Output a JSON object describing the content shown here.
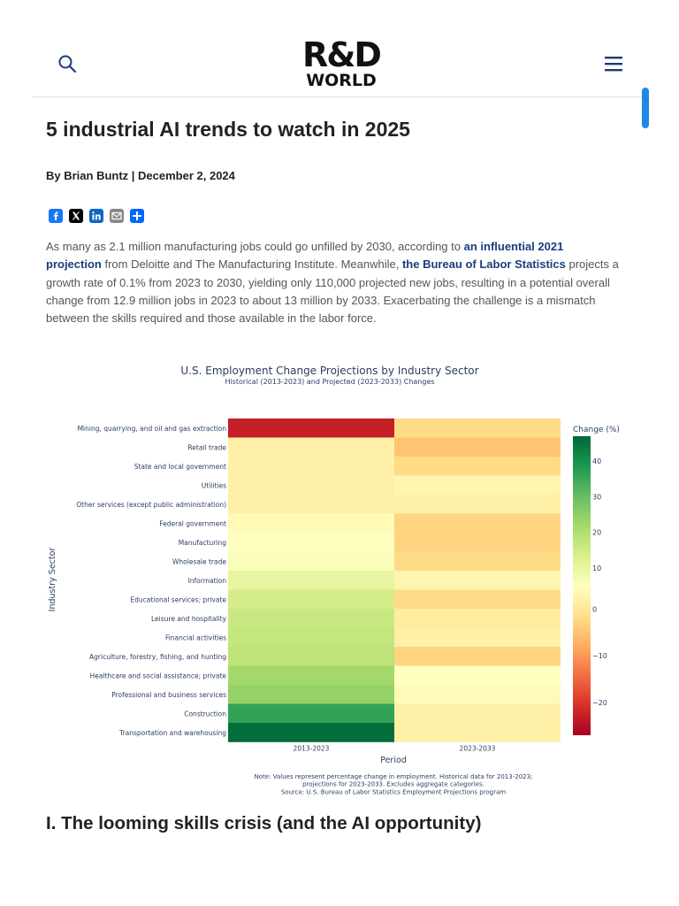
{
  "header": {
    "logo_top": "R&D",
    "logo_bottom": "WORLD",
    "search_icon": "search-icon",
    "menu_icon": "hamburger-menu-icon"
  },
  "article": {
    "title": "5 industrial AI trends to watch in 2025",
    "byline": "By Brian Buntz | December 2, 2024",
    "share_icons": [
      "facebook-icon",
      "x-icon",
      "linkedin-icon",
      "email-icon",
      "share-icon"
    ],
    "para": {
      "t1": "As many as 2.1 million manufacturing jobs could go unfilled by 2030, according to ",
      "link1": "an influential 2021 projection",
      "t2": " from Deloitte and The Manufacturing Institute. Meanwhile, ",
      "link2": "the Bureau of Labor Statistics",
      "t3": " projects a growth rate of 0.1% from 2023 to 2030, yielding only 110,000 projected new jobs, resulting in a potential overall change from 12.9 million jobs in 2023 to about 13 million by 2033. Exacerbating the challenge is a mismatch between the skills required and those available in the labor force."
    },
    "section_heading": "I. The looming skills crisis (and the AI opportunity)"
  },
  "chart_data": {
    "type": "heatmap",
    "title": "U.S. Employment Change Projections by Industry Sector",
    "subtitle": "Historical (2013-2023) and Projected (2023-2033) Changes",
    "xlabel": "Period",
    "ylabel": "Industry Sector",
    "columns": [
      "2013-2023",
      "2023-2033"
    ],
    "rows": [
      "Mining, quarrying, and oil and gas extraction",
      "Retail trade",
      "State and local government",
      "Utilities",
      "Other services (except public administration)",
      "Federal government",
      "Manufacturing",
      "Wholesale trade",
      "Information",
      "Educational services; private",
      "Leisure and hospitality",
      "Financial activities",
      "Agriculture, forestry, fishing, and hunting",
      "Healthcare and social assistance; private",
      "Professional and business services",
      "Construction",
      "Transportation and warehousing"
    ],
    "values": [
      [
        -23,
        -2
      ],
      [
        2,
        -5
      ],
      [
        2,
        -2
      ],
      [
        2,
        3
      ],
      [
        2,
        2
      ],
      [
        4,
        -3
      ],
      [
        5,
        -3
      ],
      [
        6,
        -2
      ],
      [
        10,
        3
      ],
      [
        14,
        -2
      ],
      [
        16,
        1
      ],
      [
        17,
        2
      ],
      [
        18,
        -3
      ],
      [
        22,
        5
      ],
      [
        24,
        4
      ],
      [
        36,
        2
      ],
      [
        46,
        2
      ]
    ],
    "colorbar": {
      "title": "Change (%)",
      "range": [
        -27,
        47
      ],
      "ticks": [
        40,
        30,
        20,
        10,
        0,
        -10,
        -20
      ],
      "tick_labels": [
        "40",
        "30",
        "20",
        "10",
        "0",
        "−10",
        "−20"
      ]
    },
    "note": [
      "Note: Values represent percentage change in employment. Historical data for 2013-2023;",
      "projections for 2023-2033. Excludes aggregate categories.",
      "Source: U.S. Bureau of Labor Statistics Employment Projections program"
    ]
  }
}
